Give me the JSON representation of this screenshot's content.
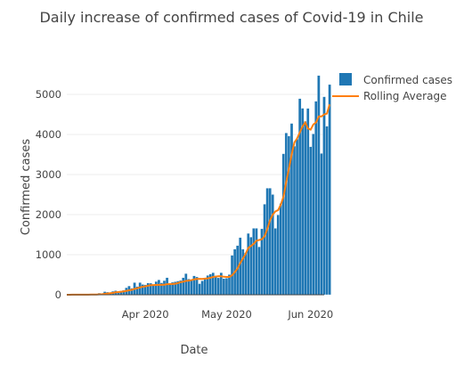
{
  "chart_data": {
    "type": "bar",
    "title": "Daily increase of confirmed cases of Covid-19 in Chile",
    "xlabel": "Date",
    "ylabel": "Confirmed cases",
    "x_range": [
      "2020-03-03",
      "2020-06-06"
    ],
    "ylim": [
      0,
      5800
    ],
    "y_ticks": [
      0,
      1000,
      2000,
      3000,
      4000,
      5000
    ],
    "x_ticks": [
      {
        "date": "2020-04-01",
        "label": "Apr 2020"
      },
      {
        "date": "2020-05-01",
        "label": "May 2020"
      },
      {
        "date": "2020-06-01",
        "label": "Jun 2020"
      }
    ],
    "grid": true,
    "legend_position": "top-right",
    "bar_color": "#1f77b4",
    "line_color": "#ff7f0e",
    "series": [
      {
        "name": "Confirmed cases",
        "type": "bar",
        "start_date": "2020-03-03",
        "values": [
          1,
          0,
          3,
          1,
          1,
          3,
          4,
          3,
          10,
          10,
          15,
          14,
          43,
          13,
          78,
          67,
          60,
          88,
          102,
          47,
          99,
          114,
          176,
          220,
          164,
          304,
          205,
          305,
          257,
          250,
          293,
          289,
          230,
          332,
          373,
          299,
          354,
          426,
          286,
          312,
          325,
          343,
          357,
          426,
          529,
          392,
          358,
          473,
          445,
          277,
          347,
          411,
          482,
          518,
          552,
          477,
          423,
          552,
          403,
          414,
          506,
          985,
          1138,
          1228,
          1427,
          1137,
          1050,
          1532,
          1439,
          1658,
          1658,
          1197,
          1646,
          2260,
          2659,
          2660,
          2502,
          1658,
          1993,
          2278,
          3520,
          4038,
          3964,
          4276,
          3709,
          3886,
          4895,
          4654,
          4328,
          4652,
          3695,
          4015,
          4830,
          5470,
          3527,
          4942,
          4207,
          5246
        ]
      },
      {
        "name": "Rolling Average",
        "type": "line",
        "start_date": "2020-03-03",
        "values": [
          1,
          1,
          2,
          2,
          2,
          2,
          2,
          3,
          4,
          5,
          6,
          7,
          12,
          14,
          23,
          31,
          38,
          47,
          60,
          67,
          74,
          84,
          98,
          112,
          122,
          147,
          163,
          183,
          199,
          211,
          226,
          238,
          241,
          245,
          247,
          246,
          250,
          263,
          267,
          269,
          276,
          290,
          314,
          326,
          346,
          353,
          365,
          384,
          394,
          397,
          394,
          402,
          408,
          424,
          443,
          454,
          463,
          461,
          449,
          445,
          445,
          486,
          564,
          654,
          790,
          903,
          1020,
          1168,
          1218,
          1272,
          1350,
          1367,
          1387,
          1460,
          1638,
          1856,
          1998,
          2080,
          2112,
          2250,
          2450,
          2820,
          3150,
          3500,
          3800,
          3900,
          4050,
          4200,
          4300,
          4150,
          4120,
          4250,
          4300,
          4450,
          4450,
          4500,
          4520,
          4750
        ]
      }
    ]
  }
}
